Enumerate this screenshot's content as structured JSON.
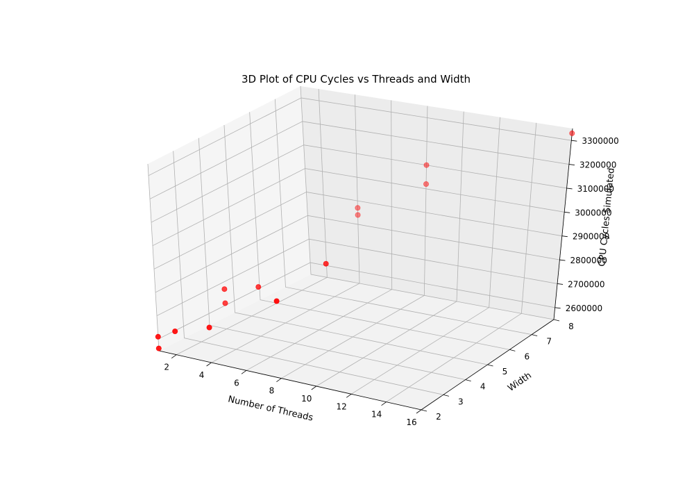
{
  "chart_data": {
    "type": "scatter",
    "projection": "3d",
    "title": "3D Plot of CPU Cycles vs Threads and Width",
    "xlabel": "Number of Threads",
    "ylabel": "Width",
    "zlabel": "CPU Cycles Simulated",
    "xticks": [
      "2",
      "4",
      "6",
      "8",
      "10",
      "12",
      "14",
      "16"
    ],
    "yticks": [
      "2",
      "3",
      "4",
      "5",
      "6",
      "7",
      "8"
    ],
    "zticks": [
      "2600000",
      "2700000",
      "2800000",
      "2900000",
      "3000000",
      "3100000",
      "3200000",
      "3300000"
    ],
    "xlim": [
      1,
      16
    ],
    "ylim": [
      2,
      8
    ],
    "zlim": [
      2550000,
      3350000
    ],
    "grid": true,
    "marker_color": "#ff0000",
    "x": [
      1,
      1,
      2,
      2,
      2,
      4,
      4,
      4,
      4,
      8,
      8,
      8,
      8,
      16
    ],
    "y": [
      2,
      2,
      4,
      2,
      4,
      2,
      4,
      8,
      8,
      2,
      4,
      8,
      8,
      8
    ],
    "z": [
      2560000,
      2610000,
      2660000,
      2650000,
      2720000,
      2700000,
      2760000,
      2840000,
      2870000,
      2880000,
      2920000,
      3020000,
      3100000,
      3330000
    ]
  }
}
